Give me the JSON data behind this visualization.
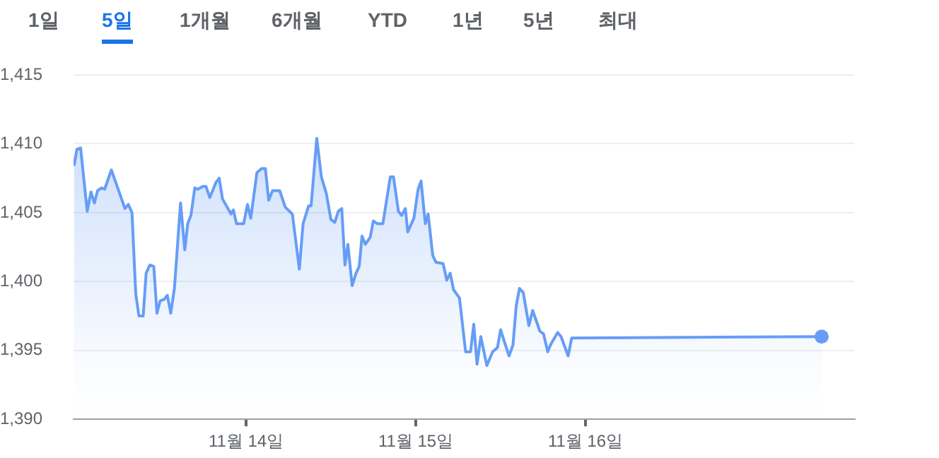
{
  "chart_data": {
    "type": "area",
    "annotations": [
      "1일",
      "5일",
      "1개월",
      "6개월",
      "YTD",
      "1년",
      "5년",
      "최대"
    ],
    "xlim": [
      "--11-12T23:36",
      "--11-17T14:00"
    ],
    "xticks": [
      {
        "value": "--11-14",
        "label": "11월 14일"
      },
      {
        "value": "--11-15",
        "label": "11월 15일"
      },
      {
        "value": "--11-16",
        "label": "11월 16일"
      }
    ],
    "ylim": [
      1390,
      1415
    ],
    "yticks": [
      {
        "value": 1390,
        "label": "1,390"
      },
      {
        "value": 1395,
        "label": "1,395"
      },
      {
        "value": 1400,
        "label": "1,400"
      },
      {
        "value": 1405,
        "label": "1,405"
      },
      {
        "value": 1410,
        "label": "1,410"
      },
      {
        "value": 1415,
        "label": "1,415"
      }
    ],
    "grid": "y",
    "legend": false,
    "series": [
      {
        "color": "#669df6",
        "x": [
          "--11-12T23:40",
          "--11-13T00:04",
          "--11-13T00:36",
          "--11-13T01:32",
          "--11-13T02:04",
          "--11-13T02:33",
          "--11-13T03:00",
          "--11-13T03:33",
          "--11-13T04:00",
          "--11-13T04:57",
          "--11-13T05:51",
          "--11-13T06:52",
          "--11-13T07:21",
          "--11-13T07:52",
          "--11-13T08:24",
          "--11-13T08:51",
          "--11-13T09:27",
          "--11-13T09:52",
          "--11-13T10:23",
          "--11-13T10:57",
          "--11-13T11:24",
          "--11-13T11:51",
          "--11-13T12:24",
          "--11-13T12:52",
          "--11-13T13:21",
          "--11-13T13:52",
          "--11-13T14:44",
          "--11-13T15:20",
          "--11-13T15:45",
          "--11-13T16:12",
          "--11-13T16:45",
          "--11-13T17:12",
          "--11-13T17:51",
          "--11-13T18:20",
          "--11-13T18:52",
          "--11-13T19:45",
          "--11-13T20:12",
          "--11-13T20:40",
          "--11-13T21:52",
          "--11-13T22:12",
          "--11-13T22:39",
          "--11-13T23:40",
          "--11-14T00:12",
          "--11-14T00:40",
          "--11-14T01:32",
          "--11-14T02:12",
          "--11-14T02:44",
          "--11-14T03:12",
          "--11-14T03:45",
          "--11-14T04:45",
          "--11-14T05:33",
          "--11-14T06:33",
          "--11-14T07:32",
          "--11-14T08:04",
          "--11-14T08:51",
          "--11-14T09:12",
          "--11-14T10:00",
          "--11-14T10:39",
          "--11-14T11:21",
          "--11-14T12:00",
          "--11-14T12:33",
          "--11-14T13:03",
          "--11-14T13:32",
          "--11-14T13:59",
          "--11-14T14:24",
          "--11-14T15:00",
          "--11-14T15:33",
          "--11-14T16:00",
          "--11-14T16:24",
          "--11-14T16:52",
          "--11-14T17:33",
          "--11-14T18:00",
          "--11-14T18:33",
          "--11-14T19:21",
          "--11-14T20:24",
          "--11-14T20:51",
          "--11-14T21:33",
          "--11-14T22:00",
          "--11-14T22:32",
          "--11-14T22:52",
          "--11-14T23:44",
          "--11-15T00:20",
          "--11-15T00:45",
          "--11-15T01:21",
          "--11-15T01:45",
          "--11-15T02:24",
          "--11-15T02:51",
          "--11-15T03:52",
          "--11-15T04:23",
          "--11-15T04:52",
          "--11-15T05:21",
          "--11-15T06:11",
          "--11-15T07:03",
          "--11-15T07:45",
          "--11-15T08:12",
          "--11-15T08:40",
          "--11-15T09:12",
          "--11-15T10:03",
          "--11-15T10:52",
          "--11-15T11:33",
          "--11-15T12:00",
          "--11-15T12:33",
          "--11-15T13:12",
          "--11-15T13:45",
          "--11-15T14:12",
          "--11-15T14:40",
          "--11-15T15:12",
          "--11-15T16:00",
          "--11-15T16:32",
          "--11-15T17:33",
          "--11-15T18:04",
          "--11-15T18:40",
          "--11-15T19:03",
          "--11-15T20:04",
          "--11-15T20:33",
          "--11-15T21:33",
          "--11-15T22:03",
          "--11-17T09:24"
        ],
        "values": [
          1408.4,
          1409.6,
          1409.7,
          1405.1,
          1406.5,
          1405.7,
          1406.6,
          1406.8,
          1406.7,
          1408.1,
          1406.8,
          1405.3,
          1405.6,
          1405.0,
          1399.1,
          1397.5,
          1397.5,
          1400.6,
          1401.2,
          1401.1,
          1397.7,
          1398.6,
          1398.7,
          1399.0,
          1397.7,
          1399.5,
          1405.7,
          1402.3,
          1404.2,
          1404.8,
          1406.8,
          1406.7,
          1406.9,
          1406.9,
          1406.1,
          1407.2,
          1407.5,
          1406.0,
          1404.9,
          1405.2,
          1404.2,
          1404.2,
          1405.6,
          1404.6,
          1407.9,
          1408.2,
          1408.2,
          1405.9,
          1406.6,
          1406.6,
          1405.4,
          1404.9,
          1400.9,
          1404.2,
          1405.5,
          1405.5,
          1410.4,
          1407.6,
          1406.4,
          1404.5,
          1404.3,
          1405.1,
          1405.3,
          1401.2,
          1402.7,
          1399.7,
          1400.6,
          1401.1,
          1403.3,
          1402.7,
          1403.2,
          1404.4,
          1404.2,
          1404.2,
          1407.6,
          1407.6,
          1405.1,
          1404.8,
          1405.3,
          1403.6,
          1404.6,
          1406.7,
          1407.3,
          1404.2,
          1404.9,
          1401.9,
          1401.4,
          1401.3,
          1400.1,
          1400.6,
          1399.4,
          1398.8,
          1394.9,
          1394.9,
          1396.9,
          1394.0,
          1396.0,
          1393.9,
          1394.9,
          1395.2,
          1396.5,
          1395.6,
          1394.6,
          1395.4,
          1398.2,
          1399.5,
          1399.2,
          1396.8,
          1397.9,
          1396.4,
          1396.2,
          1394.9,
          1395.4,
          1396.3,
          1396.0,
          1394.6,
          1395.9,
          1396.0
        ]
      }
    ]
  }
}
